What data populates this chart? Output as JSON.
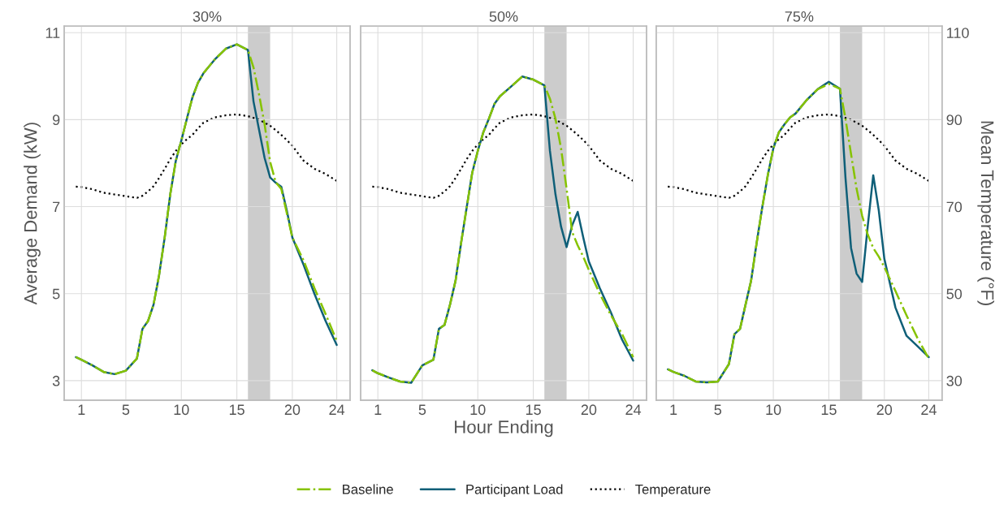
{
  "chart_data": [
    {
      "type": "line",
      "title": "30%",
      "ylabel": "Average Demand (kW)",
      "legend": "bottom",
      "grid": true,
      "x": [
        0.5,
        1,
        2,
        3,
        4,
        5,
        6,
        6.5,
        7,
        7.5,
        8,
        8.5,
        9,
        9.5,
        10,
        10.5,
        11,
        11.5,
        12,
        13,
        14,
        15,
        16,
        16.5,
        17,
        17.5,
        18,
        18.5,
        19,
        19.5,
        20,
        21,
        22,
        23,
        24
      ],
      "xlim": [
        -0.55,
        25.2
      ],
      "xticks": [
        1,
        5,
        10,
        15,
        20,
        24
      ],
      "ylim": [
        2.55,
        11.15
      ],
      "yticks": [
        3,
        5,
        7,
        9,
        11
      ],
      "y2lim": [
        25.5,
        111.5
      ],
      "bands": [
        {
          "axis": "x",
          "from": 16,
          "to": 18,
          "color": "#cccccc"
        }
      ],
      "series": [
        {
          "name": "Baseline",
          "color": "#86c300",
          "line_style": "dashdot",
          "values": [
            3.54,
            3.48,
            3.35,
            3.2,
            3.15,
            3.23,
            3.51,
            4.19,
            4.37,
            4.75,
            5.43,
            6.29,
            7.28,
            8.05,
            8.52,
            9.02,
            9.51,
            9.85,
            10.07,
            10.38,
            10.63,
            10.73,
            10.6,
            10.2,
            9.58,
            8.89,
            8.03,
            7.56,
            7.41,
            6.85,
            6.29,
            5.77,
            5.12,
            4.53,
            3.91
          ]
        },
        {
          "name": "Participant Load",
          "color": "#0f5f78",
          "line_style": "solid",
          "values": [
            3.54,
            3.48,
            3.35,
            3.2,
            3.15,
            3.23,
            3.51,
            4.19,
            4.37,
            4.75,
            5.43,
            6.29,
            7.28,
            8.05,
            8.52,
            9.02,
            9.51,
            9.85,
            10.07,
            10.38,
            10.63,
            10.73,
            10.6,
            9.42,
            8.77,
            8.12,
            7.67,
            7.55,
            7.46,
            6.91,
            6.29,
            5.67,
            4.99,
            4.37,
            3.82
          ]
        },
        {
          "name": "Temperature",
          "color": "#000000",
          "line_style": "dotted",
          "axis": "y2",
          "values": [
            74.6,
            74.5,
            74.0,
            73.2,
            72.8,
            72.4,
            72.0,
            72.5,
            73.5,
            74.7,
            76.6,
            78.7,
            80.9,
            82.8,
            84.3,
            85.5,
            86.5,
            88.0,
            89.3,
            90.5,
            91.0,
            91.2,
            90.8,
            90.4,
            90.0,
            89.3,
            88.6,
            87.6,
            86.5,
            85.3,
            84.0,
            80.6,
            78.7,
            77.5,
            75.9
          ]
        }
      ]
    },
    {
      "type": "line",
      "title": "50%",
      "xlabel": "Hour Ending",
      "tick_labels": "x",
      "grid": true,
      "x": [
        0.5,
        1,
        2,
        3,
        4,
        5,
        6,
        6.5,
        7,
        7.5,
        8,
        8.5,
        9,
        9.5,
        10,
        10.5,
        11,
        11.5,
        12,
        13,
        14,
        15,
        16,
        16.5,
        17,
        17.5,
        18,
        18.5,
        19,
        19.5,
        20,
        21,
        22,
        23,
        24
      ],
      "xlim": [
        -0.55,
        25.2
      ],
      "xticks": [
        1,
        5,
        10,
        15,
        20,
        24
      ],
      "ylim": [
        2.55,
        11.15
      ],
      "y2lim": [
        25.5,
        111.5
      ],
      "bands": [
        {
          "axis": "x",
          "from": 16,
          "to": 18,
          "color": "#cccccc"
        }
      ],
      "series": [
        {
          "color": "#86c300",
          "line_style": "dashdot",
          "values": [
            3.24,
            3.17,
            3.07,
            2.98,
            2.95,
            3.35,
            3.48,
            4.19,
            4.28,
            4.75,
            5.3,
            6.17,
            6.98,
            7.78,
            8.28,
            8.71,
            9.02,
            9.36,
            9.54,
            9.76,
            9.99,
            9.92,
            9.79,
            9.48,
            9.02,
            8.34,
            7.41,
            6.42,
            6.11,
            5.85,
            5.55,
            4.99,
            4.5,
            4.07,
            3.54
          ]
        },
        {
          "color": "#0f5f78",
          "line_style": "solid",
          "values": [
            3.24,
            3.17,
            3.07,
            2.98,
            2.95,
            3.35,
            3.48,
            4.19,
            4.28,
            4.75,
            5.3,
            6.17,
            6.98,
            7.78,
            8.28,
            8.71,
            9.02,
            9.36,
            9.54,
            9.76,
            9.99,
            9.92,
            9.79,
            8.28,
            7.28,
            6.54,
            6.07,
            6.57,
            6.88,
            6.29,
            5.74,
            5.12,
            4.56,
            3.94,
            3.46
          ]
        },
        {
          "color": "#000000",
          "line_style": "dotted",
          "axis": "y2",
          "values": [
            74.6,
            74.5,
            74.0,
            73.2,
            72.8,
            72.4,
            72.0,
            72.5,
            73.5,
            74.7,
            76.6,
            78.7,
            80.9,
            82.8,
            84.3,
            85.5,
            86.5,
            88.0,
            89.3,
            90.5,
            91.0,
            91.2,
            90.8,
            90.4,
            90.0,
            89.3,
            88.6,
            87.6,
            86.5,
            85.3,
            84.0,
            80.6,
            78.7,
            77.5,
            75.9
          ]
        }
      ]
    },
    {
      "type": "line",
      "title": "75%",
      "y2label": "Mean Temperature (°F)",
      "grid": true,
      "x": [
        0.5,
        1,
        2,
        3,
        4,
        5,
        6,
        6.5,
        7,
        7.5,
        8,
        8.5,
        9,
        9.5,
        10,
        10.5,
        11,
        11.5,
        12,
        13,
        14,
        15,
        16,
        16.5,
        17,
        17.5,
        18,
        18.5,
        19,
        19.5,
        20,
        21,
        22,
        23,
        24
      ],
      "xlim": [
        -0.55,
        25.2
      ],
      "xticks": [
        1,
        5,
        10,
        15,
        20,
        24
      ],
      "ylim": [
        2.55,
        11.15
      ],
      "y2lim": [
        25.5,
        111.5
      ],
      "y2ticks": [
        30,
        50,
        70,
        90,
        110
      ],
      "bands": [
        {
          "axis": "x",
          "from": 16,
          "to": 18,
          "color": "#cccccc"
        }
      ],
      "series": [
        {
          "color": "#86c300",
          "line_style": "dashdot",
          "values": [
            3.26,
            3.2,
            3.11,
            2.98,
            2.96,
            2.98,
            3.38,
            4.07,
            4.19,
            4.75,
            5.3,
            6.17,
            6.98,
            7.72,
            8.34,
            8.71,
            8.89,
            9.05,
            9.14,
            9.45,
            9.7,
            9.82,
            9.71,
            9.02,
            8.21,
            7.41,
            6.79,
            6.36,
            6.05,
            5.85,
            5.61,
            5.06,
            4.5,
            3.97,
            3.51
          ]
        },
        {
          "color": "#0f5f78",
          "line_style": "solid",
          "values": [
            3.26,
            3.2,
            3.11,
            2.98,
            2.96,
            2.98,
            3.38,
            4.07,
            4.19,
            4.75,
            5.3,
            6.17,
            6.98,
            7.72,
            8.34,
            8.71,
            8.89,
            9.05,
            9.14,
            9.45,
            9.7,
            9.87,
            9.71,
            7.66,
            6.05,
            5.46,
            5.27,
            6.54,
            7.72,
            6.91,
            5.8,
            4.68,
            4.03,
            3.79,
            3.54
          ]
        },
        {
          "color": "#000000",
          "line_style": "dotted",
          "axis": "y2",
          "values": [
            74.6,
            74.5,
            74.0,
            73.2,
            72.8,
            72.4,
            72.0,
            72.5,
            73.5,
            74.7,
            76.6,
            78.7,
            80.9,
            82.8,
            84.3,
            85.5,
            86.5,
            88.0,
            89.3,
            90.5,
            91.0,
            91.2,
            90.8,
            90.4,
            90.0,
            89.3,
            88.6,
            87.6,
            86.5,
            85.3,
            84.0,
            80.6,
            78.7,
            77.5,
            75.9
          ]
        }
      ]
    }
  ]
}
